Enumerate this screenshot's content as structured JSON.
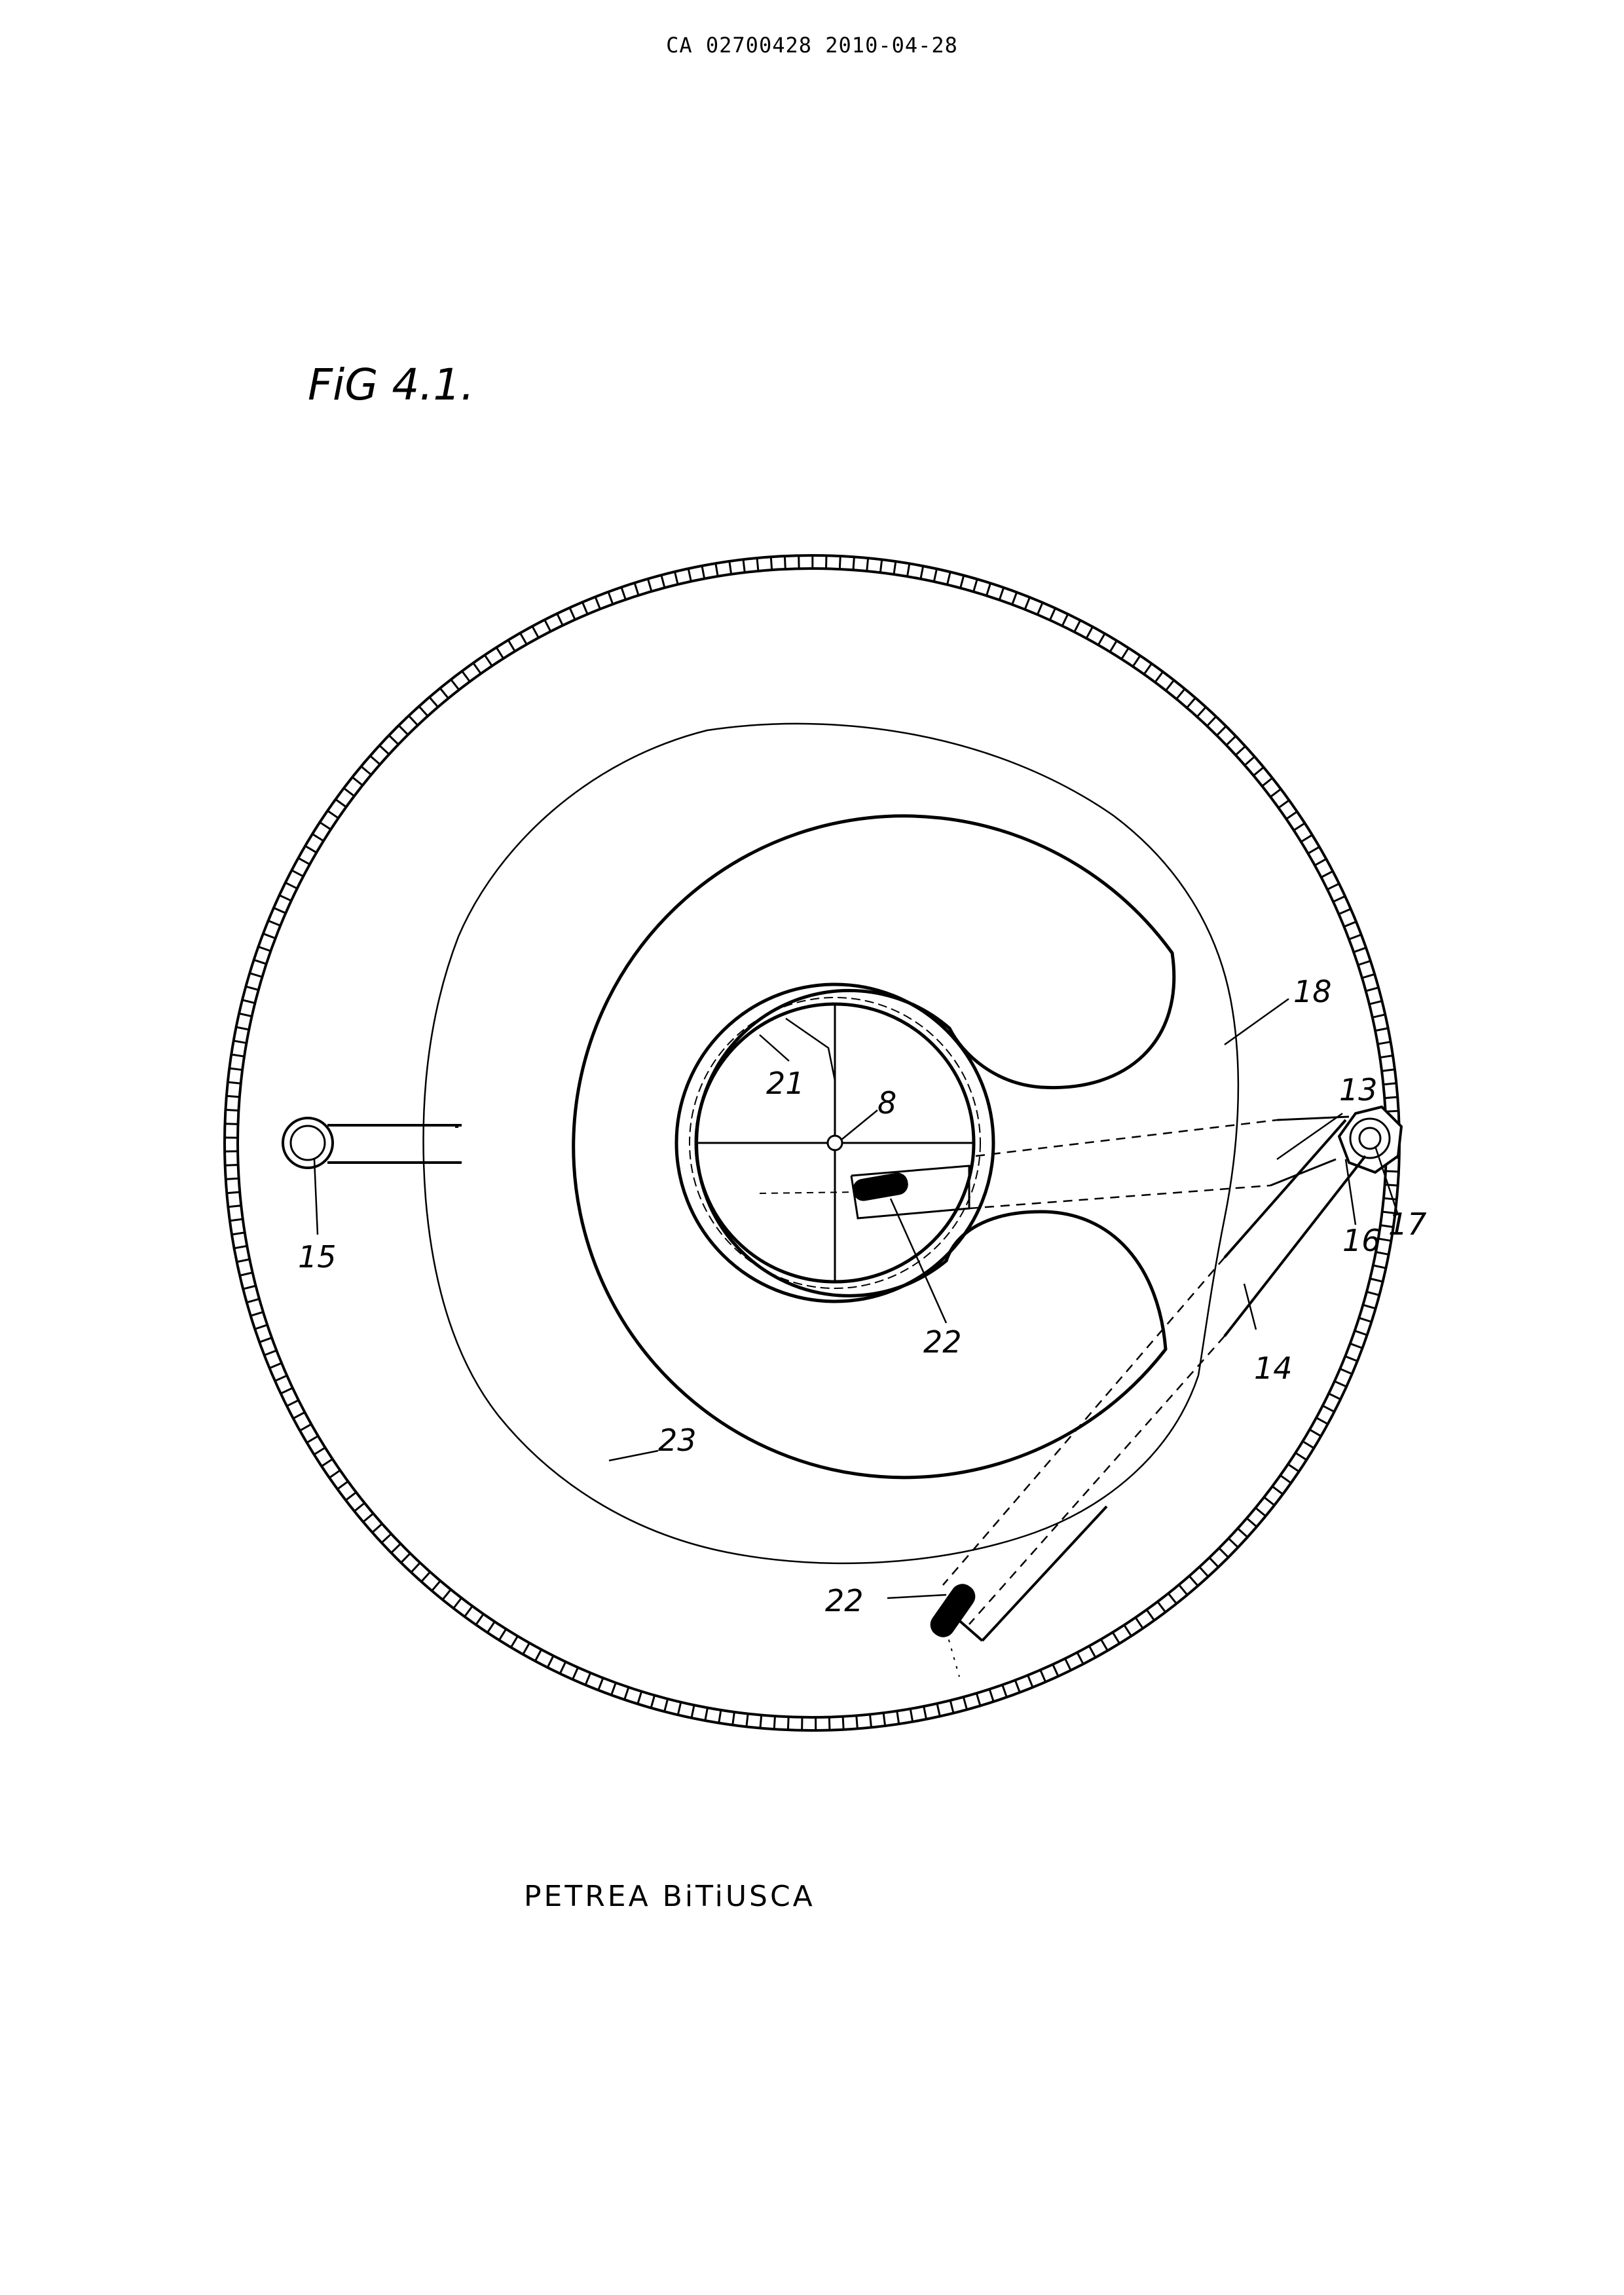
{
  "header": {
    "document_id": "CA 02700428 2010-04-28"
  },
  "figure": {
    "title": "FiG 4.1.",
    "labels": {
      "l18": "18",
      "l13": "13",
      "l21": "21",
      "l8": "8",
      "l15": "15",
      "l16": "16",
      "l17": "17",
      "l22a": "22",
      "l14": "14",
      "l23": "23",
      "l22b": "22"
    }
  },
  "signature": {
    "text": "PETREA BiTiUSCA"
  }
}
